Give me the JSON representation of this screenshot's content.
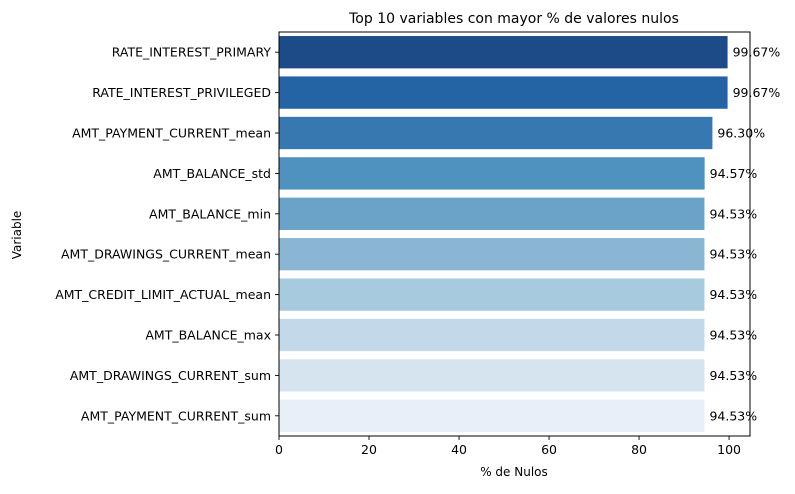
{
  "chart_data": {
    "type": "bar",
    "orientation": "horizontal",
    "title": "Top 10 variables con mayor % de valores nulos",
    "xlabel": "% de Nulos",
    "ylabel": "Variable",
    "xlim": [
      0,
      104.65
    ],
    "xticks": [
      0,
      20,
      40,
      60,
      80,
      100
    ],
    "grid": false,
    "categories": [
      "RATE_INTEREST_PRIMARY",
      "RATE_INTEREST_PRIVILEGED",
      "AMT_PAYMENT_CURRENT_mean",
      "AMT_BALANCE_std",
      "AMT_BALANCE_min",
      "AMT_DRAWINGS_CURRENT_mean",
      "AMT_CREDIT_LIMIT_ACTUAL_mean",
      "AMT_BALANCE_max",
      "AMT_DRAWINGS_CURRENT_sum",
      "AMT_PAYMENT_CURRENT_sum"
    ],
    "values": [
      99.67,
      99.67,
      96.3,
      94.57,
      94.53,
      94.53,
      94.53,
      94.53,
      94.53,
      94.53
    ],
    "data_labels": [
      "99.67%",
      "99.67%",
      "96.30%",
      "94.57%",
      "94.53%",
      "94.53%",
      "94.53%",
      "94.53%",
      "94.53%",
      "94.53%"
    ],
    "colors": [
      "#1c4b87",
      "#2463a4",
      "#3878b1",
      "#4f91bf",
      "#6ba3c8",
      "#8ab6d4",
      "#a8cadf",
      "#c3d9ea",
      "#d6e4f0",
      "#e7eff8"
    ]
  }
}
